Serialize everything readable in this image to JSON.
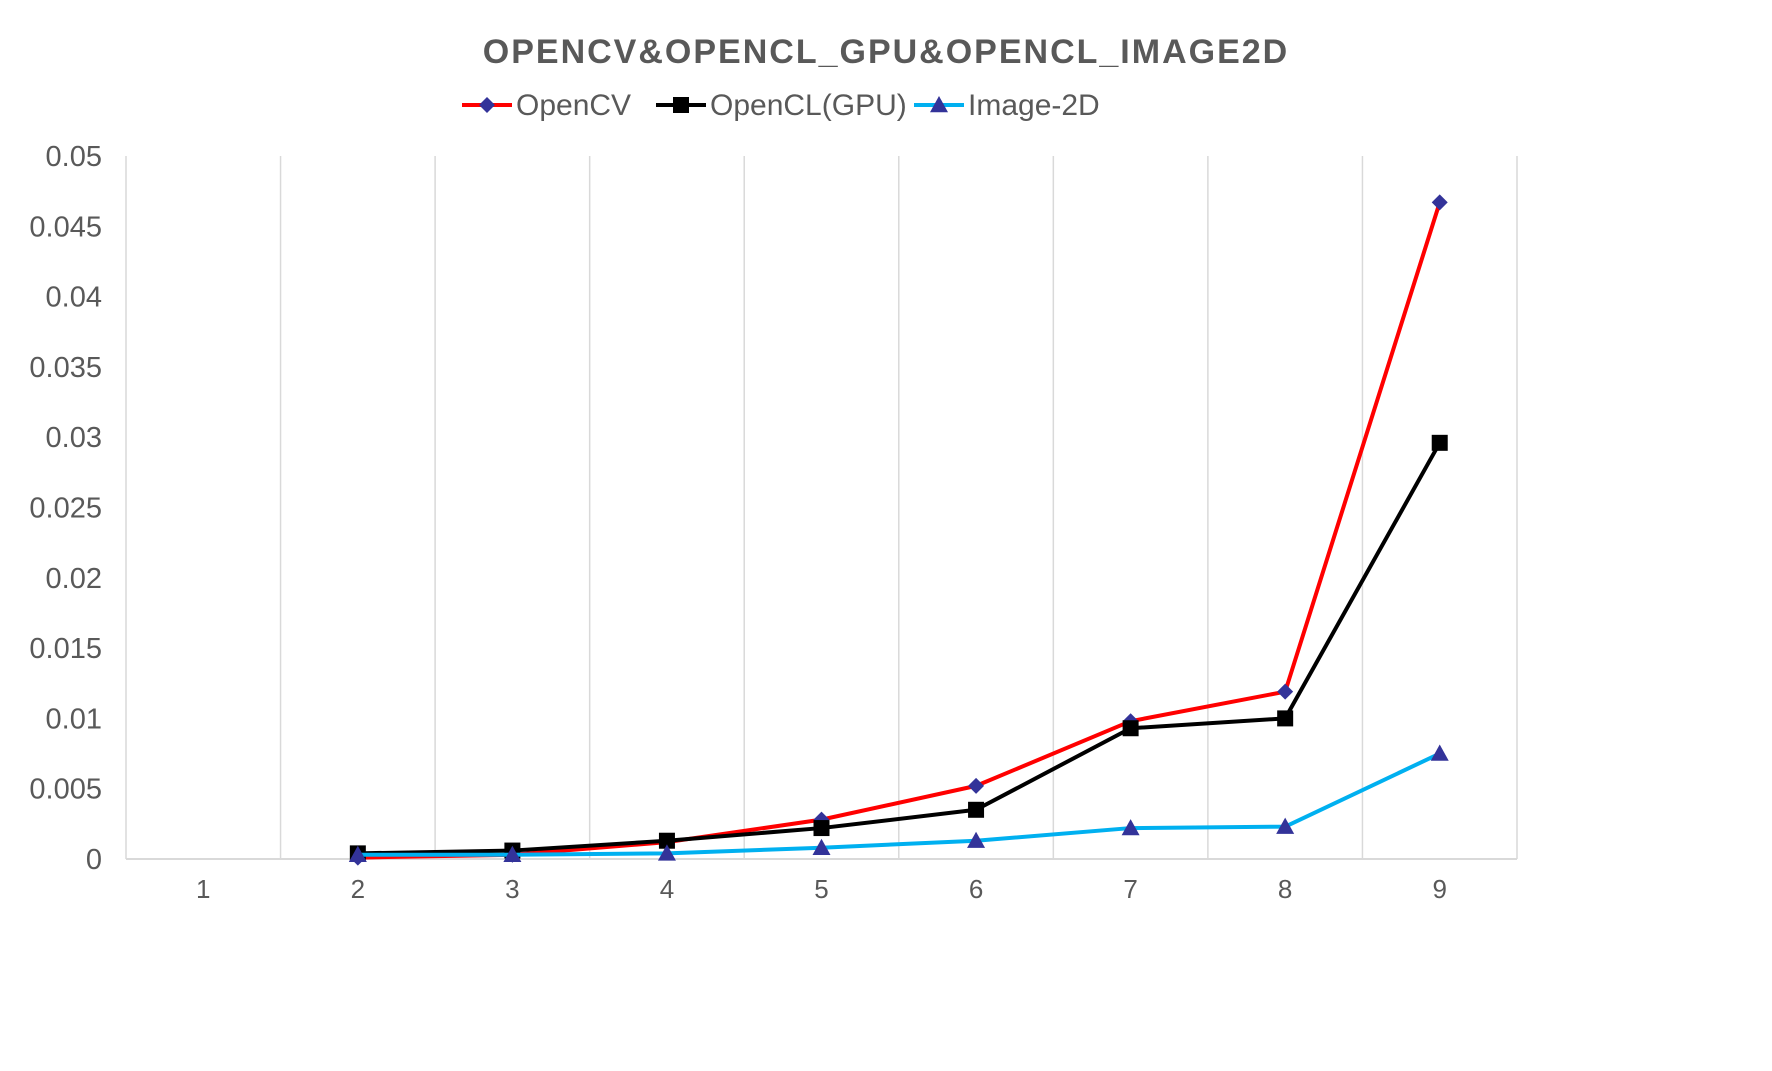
{
  "chart_data": {
    "type": "line",
    "title": "OPENCV&OPENCL_GPU&OPENCL_IMAGE2D",
    "xlabel": "",
    "ylabel": "",
    "x": [
      "1",
      "2",
      "3",
      "4",
      "5",
      "6",
      "7",
      "8",
      "9"
    ],
    "ylim": [
      0,
      0.05
    ],
    "yticks": [
      0,
      0.005,
      0.01,
      0.015,
      0.02,
      0.025,
      0.03,
      0.035,
      0.04,
      0.045,
      0.05
    ],
    "ytick_labels": [
      "0",
      "0.005",
      "0.01",
      "0.015",
      "0.02",
      "0.025",
      "0.03",
      "0.035",
      "0.04",
      "0.045",
      "0.05"
    ],
    "grid": "vertical",
    "legend": "top-center",
    "series": [
      {
        "name": "OpenCV",
        "line_color": "#ff0000",
        "marker_color": "#333399",
        "marker": "diamond",
        "values": [
          null,
          0.0001,
          0.0003,
          0.0012,
          0.0028,
          0.0052,
          0.0098,
          0.0119,
          0.0467
        ]
      },
      {
        "name": "OpenCL(GPU)",
        "line_color": "#000000",
        "marker_color": "#000000",
        "marker": "square",
        "values": [
          null,
          0.0004,
          0.0006,
          0.0013,
          0.0022,
          0.0035,
          0.0093,
          0.01,
          0.0296
        ]
      },
      {
        "name": "Image-2D",
        "line_color": "#00b0f0",
        "marker_color": "#333399",
        "marker": "triangle",
        "values": [
          null,
          0.0003,
          0.0003,
          0.0004,
          0.0008,
          0.0013,
          0.0022,
          0.0023,
          0.0075
        ]
      }
    ]
  }
}
